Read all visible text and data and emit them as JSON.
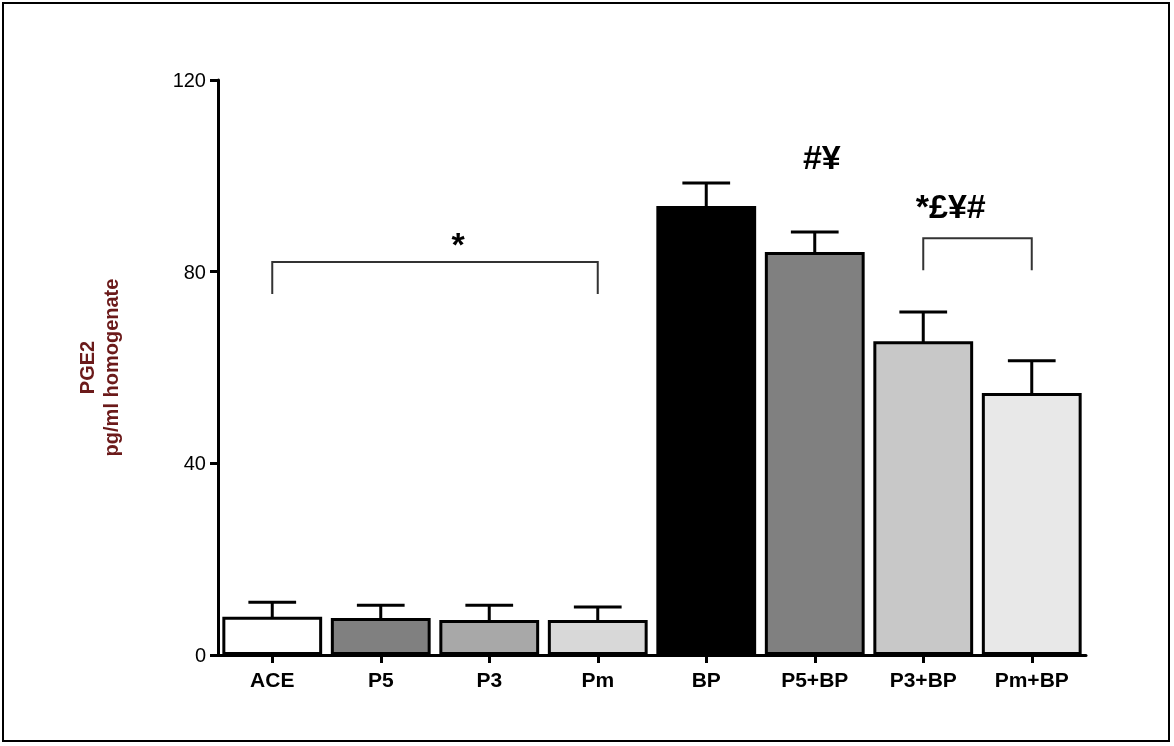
{
  "chart_data": {
    "type": "bar",
    "ylabel": "PGE2\npg/ml homogenate",
    "categories": [
      "ACE",
      "P5",
      "P3",
      "Pm",
      "BP",
      "P5+BP",
      "P3+BP",
      "Pm+BP"
    ],
    "values": [
      8,
      7.7,
      7.3,
      7.3,
      93.7,
      84.1,
      65.5,
      54.7
    ],
    "errors": [
      3,
      2.7,
      3.1,
      2.7,
      4.8,
      4.2,
      6.1,
      6.7
    ],
    "colors": [
      "#ffffff",
      "#808080",
      "#a8a8a8",
      "#d8d8d8",
      "#000000",
      "#808080",
      "#c8c8c8",
      "#e8e8e8"
    ],
    "ylim": [
      0,
      120
    ],
    "yticks": [
      0,
      40,
      80,
      120
    ],
    "grid": false,
    "annotations": [
      "*",
      "#¥",
      "*£¥#"
    ]
  }
}
